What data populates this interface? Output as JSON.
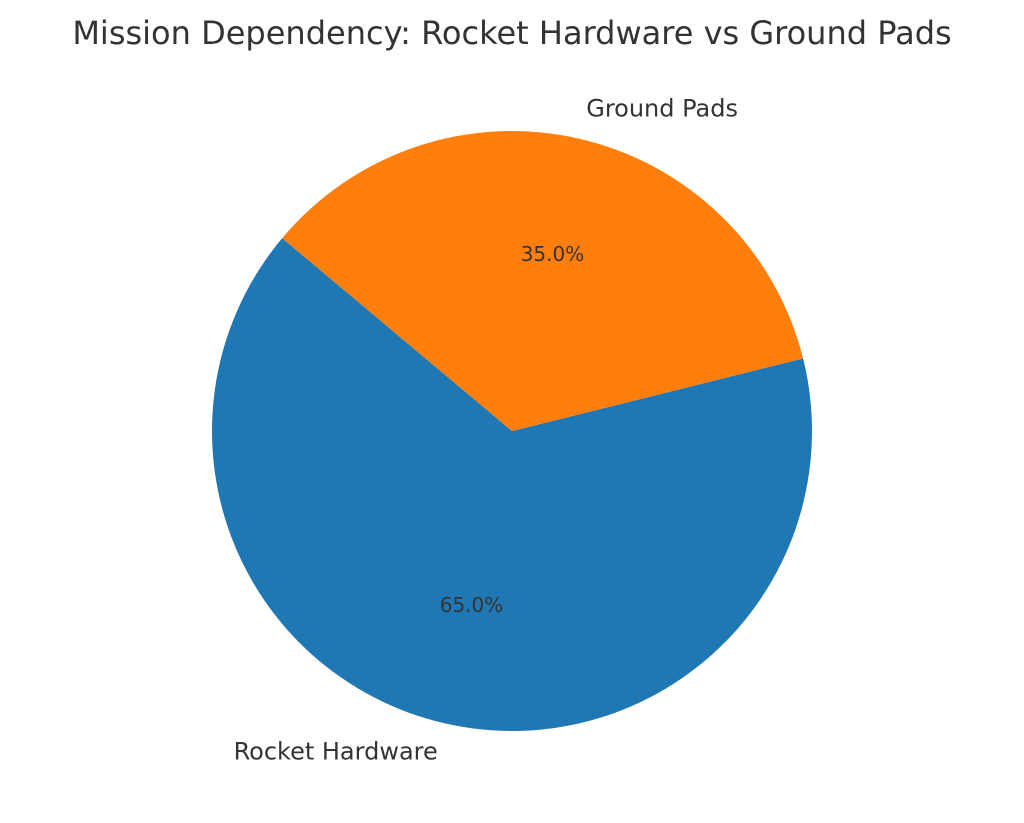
{
  "chart_data": {
    "type": "pie",
    "title": "Mission Dependency: Rocket Hardware vs Ground Pads",
    "labels": [
      "Rocket Hardware",
      "Ground Pads"
    ],
    "values": [
      65.0,
      35.0
    ],
    "percent_labels": [
      "65.0%",
      "35.0%"
    ],
    "colors": [
      "#1f77b4",
      "#ff7f0e"
    ],
    "start_angle_deg": 140,
    "direction": "counterclockwise"
  }
}
